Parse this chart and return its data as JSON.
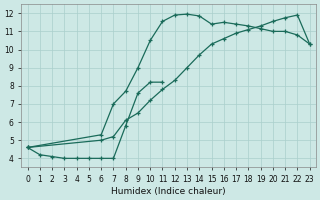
{
  "xlabel": "Humidex (Indice chaleur)",
  "xlim": [
    -0.5,
    23.5
  ],
  "ylim": [
    3.5,
    12.5
  ],
  "xticks": [
    0,
    1,
    2,
    3,
    4,
    5,
    6,
    7,
    8,
    9,
    10,
    11,
    12,
    13,
    14,
    15,
    16,
    17,
    18,
    19,
    20,
    21,
    22,
    23
  ],
  "yticks": [
    4,
    5,
    6,
    7,
    8,
    9,
    10,
    11,
    12
  ],
  "bg_color": "#cde8e5",
  "grid_color": "#aacfcc",
  "line_color": "#1a6b5a",
  "line1_x": [
    0,
    1,
    2,
    3,
    4,
    5,
    6,
    7,
    8,
    9,
    10,
    11
  ],
  "line1_y": [
    4.6,
    4.2,
    4.1,
    4.0,
    4.0,
    4.0,
    4.0,
    4.0,
    5.8,
    7.6,
    8.2,
    8.2
  ],
  "line2_x": [
    0,
    6,
    7,
    8,
    9,
    10,
    11,
    12,
    13,
    14,
    15,
    16,
    17,
    18,
    19,
    20,
    21,
    22,
    23
  ],
  "line2_y": [
    4.6,
    5.3,
    7.0,
    7.7,
    9.0,
    10.5,
    11.55,
    11.9,
    11.95,
    11.85,
    11.4,
    11.5,
    11.4,
    11.3,
    11.15,
    11.0,
    11.0,
    10.8,
    10.3
  ],
  "line3_x": [
    0,
    6,
    7,
    8,
    9,
    10,
    11,
    12,
    13,
    14,
    15,
    16,
    17,
    18,
    19,
    20,
    21,
    22,
    23
  ],
  "line3_y": [
    4.6,
    5.0,
    5.2,
    6.1,
    6.5,
    7.2,
    7.8,
    8.3,
    9.0,
    9.7,
    10.3,
    10.6,
    10.9,
    11.1,
    11.3,
    11.55,
    11.75,
    11.9,
    10.3
  ]
}
